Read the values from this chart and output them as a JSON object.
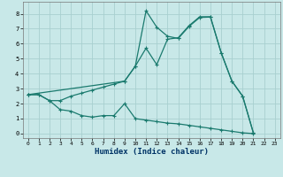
{
  "bg_color": "#c8e8e8",
  "grid_color": "#a8d0d0",
  "line_color": "#1a7a6e",
  "xlabel": "Humidex (Indice chaleur)",
  "xlim": [
    -0.5,
    23.5
  ],
  "ylim": [
    -0.3,
    8.8
  ],
  "xticks": [
    0,
    1,
    2,
    3,
    4,
    5,
    6,
    7,
    8,
    9,
    10,
    11,
    12,
    13,
    14,
    15,
    16,
    17,
    18,
    19,
    20,
    21,
    22,
    23
  ],
  "yticks": [
    0,
    1,
    2,
    3,
    4,
    5,
    6,
    7,
    8
  ],
  "line1_x": [
    0,
    1,
    2,
    3,
    4,
    5,
    6,
    7,
    8,
    9,
    10,
    11,
    12,
    13,
    14,
    15,
    16,
    17,
    18,
    19,
    20,
    21
  ],
  "line1_y": [
    2.6,
    2.6,
    2.2,
    2.2,
    2.5,
    2.7,
    2.9,
    3.1,
    3.3,
    3.5,
    4.5,
    5.7,
    4.6,
    6.3,
    6.4,
    7.2,
    7.8,
    7.8,
    5.4,
    3.5,
    2.5,
    0.05
  ],
  "line2_x": [
    0,
    1,
    2,
    3,
    4,
    5,
    6,
    7,
    8,
    9,
    10,
    11,
    12,
    13,
    14,
    15,
    16,
    17,
    18,
    19,
    20,
    21
  ],
  "line2_y": [
    2.6,
    2.6,
    2.2,
    1.6,
    1.5,
    1.2,
    1.1,
    1.2,
    1.2,
    2.0,
    1.0,
    0.9,
    0.8,
    0.7,
    0.65,
    0.55,
    0.45,
    0.35,
    0.25,
    0.15,
    0.05,
    0.0
  ],
  "line3_x": [
    0,
    9,
    10,
    11,
    12,
    13,
    14,
    15,
    16,
    17,
    18,
    19,
    20,
    21
  ],
  "line3_y": [
    2.6,
    3.5,
    4.5,
    8.2,
    7.1,
    6.5,
    6.35,
    7.15,
    7.75,
    7.78,
    5.4,
    3.5,
    2.5,
    0.05
  ]
}
